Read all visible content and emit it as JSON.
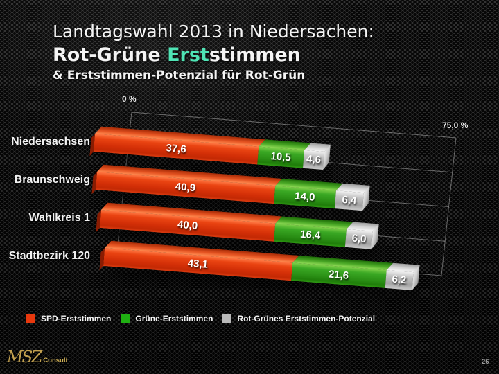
{
  "slide": {
    "title": {
      "line1": "Landtagswahl 2013 in Niedersachen:",
      "line2_prefix": "Rot-Grüne ",
      "line2_highlight": "Erst",
      "line2_suffix": "stimmen",
      "line3": "& Erststimmen-Potenzial für Rot-Grün",
      "highlight_color": "#4fe3b4"
    },
    "footer": {
      "logo_script": "MSZ",
      "logo_text": "Consult",
      "logo_color": "#c2a04f",
      "page_number": "26"
    }
  },
  "chart_data": {
    "type": "bar",
    "orientation": "horizontal",
    "stacked": true,
    "grid": true,
    "legend_position": "bottom",
    "title": "Rot-Grüne Erststimmen & Erststimmen-Potenzial für Rot-Grün",
    "categories": [
      "Niedersachsen",
      "Braunschweig",
      "Wahlkreis 1",
      "Stadtbezirk 120"
    ],
    "series": [
      {
        "name": "SPD-Erststimmen",
        "color": "#e8380d",
        "values": [
          37.6,
          40.9,
          40.0,
          43.1
        ]
      },
      {
        "name": "Grüne-Erststimmen",
        "color": "#1fb012",
        "values": [
          10.5,
          14.0,
          16.4,
          21.6
        ]
      },
      {
        "name": "Rot-Grünes Erststimmen-Potenzial",
        "color": "#b9b9b9",
        "values": [
          4.6,
          6.4,
          6.0,
          6.2
        ]
      }
    ],
    "value_labels": [
      [
        "37,6",
        "10,5",
        "4,6"
      ],
      [
        "40,9",
        "14,0",
        "6,4"
      ],
      [
        "40,0",
        "16,4",
        "6,0"
      ],
      [
        "43,1",
        "21,6",
        "6,2"
      ]
    ],
    "axis": {
      "min": 0,
      "max": 75,
      "min_label": "0 %",
      "max_label": "75,0 %",
      "unit": "%"
    }
  }
}
